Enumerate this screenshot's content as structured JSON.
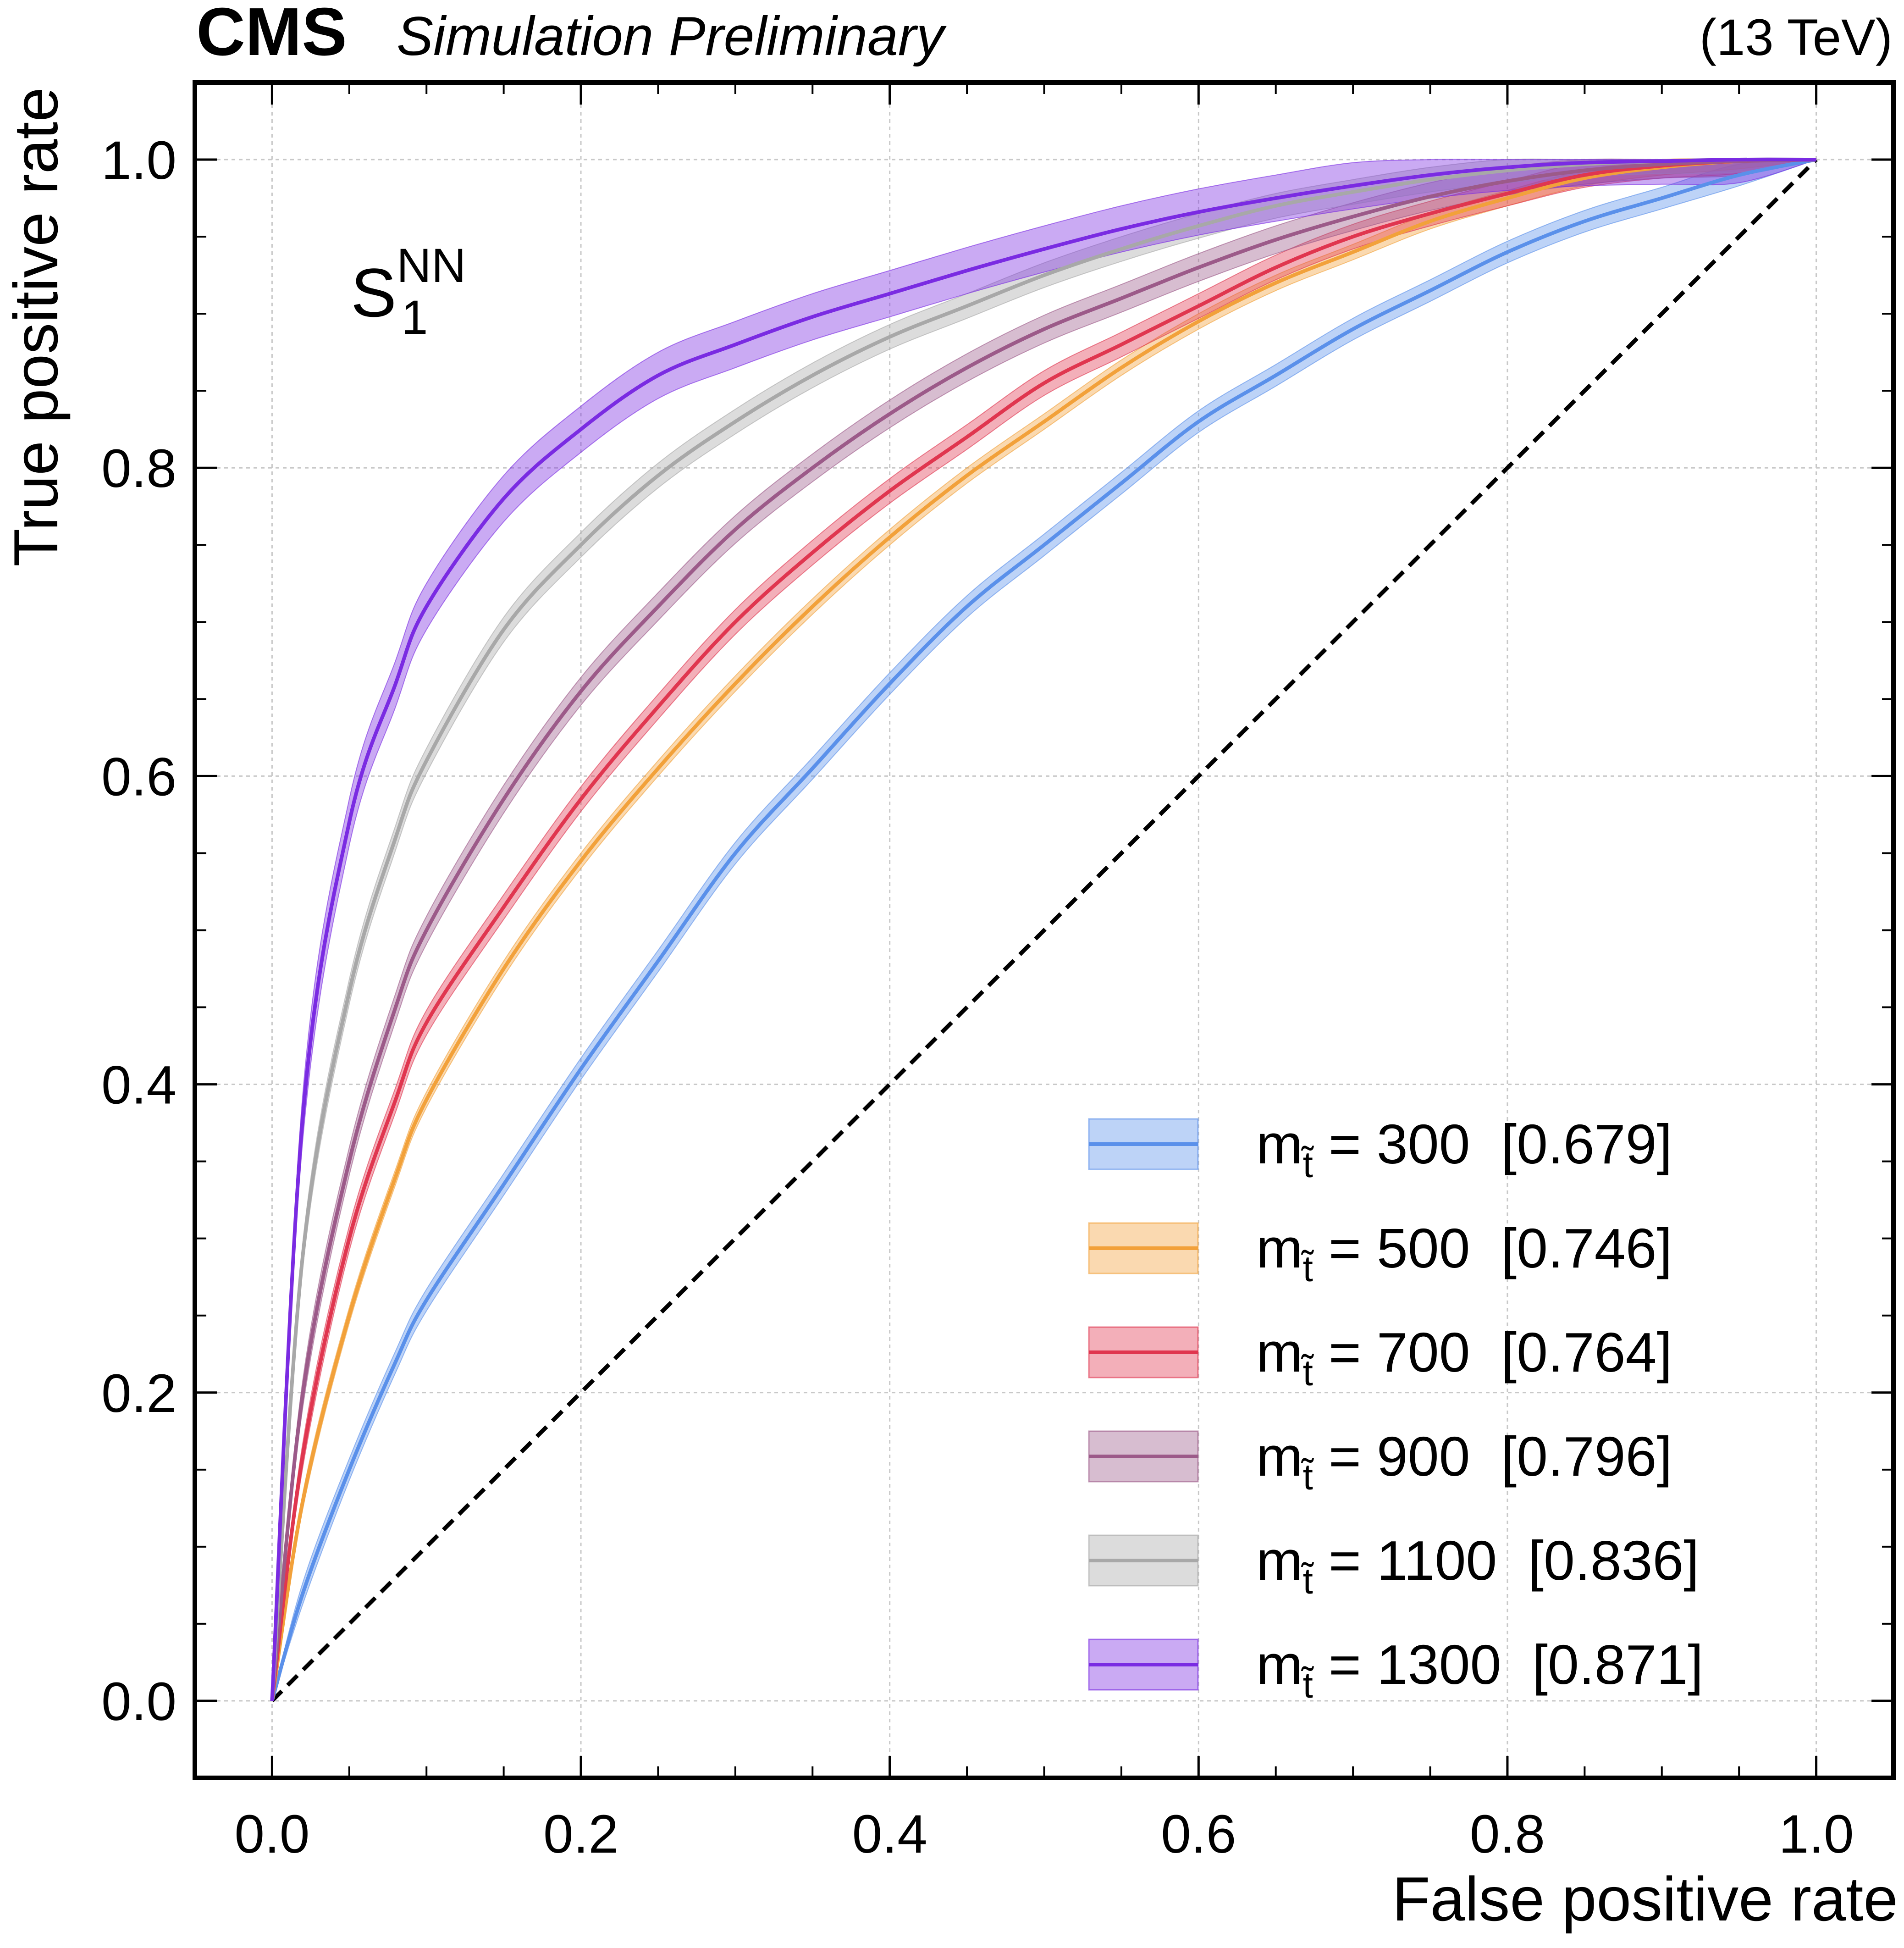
{
  "chart_data": {
    "type": "line",
    "header": {
      "experiment": "CMS",
      "subtitle": "Simulation Preliminary",
      "energy": "(13 TeV)"
    },
    "annotation": {
      "base": "S",
      "sup": "NN",
      "sub": "1"
    },
    "xlabel": "False positive rate",
    "ylabel": "True positive rate",
    "xlim": [
      -0.05,
      1.05
    ],
    "ylim": [
      -0.05,
      1.05
    ],
    "xticks": [
      "0.0",
      "0.2",
      "0.4",
      "0.6",
      "0.8",
      "1.0"
    ],
    "yticks": [
      "0.0",
      "0.2",
      "0.4",
      "0.6",
      "0.8",
      "1.0"
    ],
    "grid": true,
    "legend_position": "bottom-right",
    "reference_line": {
      "name": "random",
      "x": [
        0,
        1
      ],
      "y": [
        0,
        1
      ],
      "color": "#000000",
      "style": "dashed"
    },
    "series": [
      {
        "mass": "300",
        "auc": "0.679",
        "color": "#5a90ea",
        "band": 0.007,
        "x": [
          0,
          0.02,
          0.05,
          0.08,
          0.1,
          0.15,
          0.2,
          0.25,
          0.3,
          0.35,
          0.4,
          0.45,
          0.5,
          0.55,
          0.6,
          0.65,
          0.7,
          0.75,
          0.8,
          0.85,
          0.9,
          0.95,
          1.0
        ],
        "y": [
          0,
          0.07,
          0.15,
          0.22,
          0.26,
          0.335,
          0.41,
          0.48,
          0.55,
          0.605,
          0.66,
          0.71,
          0.75,
          0.79,
          0.83,
          0.86,
          0.89,
          0.915,
          0.94,
          0.96,
          0.975,
          0.99,
          1.0
        ]
      },
      {
        "mass": "500",
        "auc": "0.746",
        "color": "#f2a13a",
        "band": 0.005,
        "x": [
          0,
          0.02,
          0.05,
          0.08,
          0.1,
          0.15,
          0.2,
          0.25,
          0.3,
          0.35,
          0.4,
          0.45,
          0.5,
          0.55,
          0.6,
          0.65,
          0.7,
          0.75,
          0.8,
          0.85,
          0.9,
          0.95,
          1.0
        ],
        "y": [
          0,
          0.13,
          0.25,
          0.34,
          0.39,
          0.475,
          0.545,
          0.605,
          0.66,
          0.71,
          0.755,
          0.795,
          0.83,
          0.865,
          0.895,
          0.92,
          0.94,
          0.96,
          0.975,
          0.988,
          0.995,
          0.999,
          1.0
        ]
      },
      {
        "mass": "700",
        "auc": "0.764",
        "color": "#e0364f",
        "band": 0.008,
        "x": [
          0,
          0.02,
          0.05,
          0.08,
          0.1,
          0.15,
          0.2,
          0.25,
          0.3,
          0.35,
          0.4,
          0.45,
          0.5,
          0.55,
          0.6,
          0.65,
          0.7,
          0.75,
          0.8,
          0.85,
          0.9,
          0.95,
          1.0
        ],
        "y": [
          0,
          0.16,
          0.3,
          0.39,
          0.44,
          0.515,
          0.585,
          0.645,
          0.7,
          0.745,
          0.785,
          0.82,
          0.855,
          0.88,
          0.905,
          0.93,
          0.95,
          0.965,
          0.978,
          0.99,
          0.996,
          0.999,
          1.0
        ]
      },
      {
        "mass": "900",
        "auc": "0.796",
        "color": "#9c5a89",
        "band": 0.009,
        "x": [
          0,
          0.02,
          0.05,
          0.08,
          0.1,
          0.15,
          0.2,
          0.25,
          0.3,
          0.35,
          0.4,
          0.45,
          0.5,
          0.55,
          0.6,
          0.65,
          0.7,
          0.75,
          0.8,
          0.85,
          0.9,
          0.95,
          1.0
        ],
        "y": [
          0,
          0.2,
          0.35,
          0.45,
          0.5,
          0.585,
          0.655,
          0.71,
          0.76,
          0.8,
          0.835,
          0.865,
          0.89,
          0.91,
          0.93,
          0.948,
          0.963,
          0.976,
          0.986,
          0.993,
          0.997,
          0.999,
          1.0
        ]
      },
      {
        "mass": "1100",
        "auc": "0.836",
        "color": "#a8a8a8",
        "band": 0.008,
        "x": [
          0,
          0.02,
          0.05,
          0.08,
          0.1,
          0.15,
          0.2,
          0.25,
          0.3,
          0.35,
          0.4,
          0.45,
          0.5,
          0.55,
          0.6,
          0.65,
          0.7,
          0.75,
          0.8,
          0.85,
          0.9,
          0.95,
          1.0
        ],
        "y": [
          0,
          0.29,
          0.46,
          0.56,
          0.61,
          0.695,
          0.75,
          0.795,
          0.83,
          0.86,
          0.885,
          0.905,
          0.925,
          0.942,
          0.957,
          0.97,
          0.979,
          0.987,
          0.993,
          0.997,
          0.999,
          1.0,
          1.0
        ]
      },
      {
        "mass": "1300",
        "auc": "0.871",
        "color": "#7a2be2",
        "band": 0.015,
        "x": [
          0,
          0.02,
          0.05,
          0.08,
          0.1,
          0.15,
          0.2,
          0.25,
          0.3,
          0.35,
          0.4,
          0.45,
          0.5,
          0.55,
          0.6,
          0.65,
          0.7,
          0.75,
          0.8,
          0.85,
          0.9,
          0.95,
          1.0
        ],
        "y": [
          0,
          0.38,
          0.57,
          0.66,
          0.71,
          0.78,
          0.825,
          0.86,
          0.88,
          0.898,
          0.913,
          0.928,
          0.942,
          0.955,
          0.966,
          0.975,
          0.983,
          0.99,
          0.995,
          0.998,
          0.999,
          1.0,
          1.0
        ]
      }
    ]
  }
}
